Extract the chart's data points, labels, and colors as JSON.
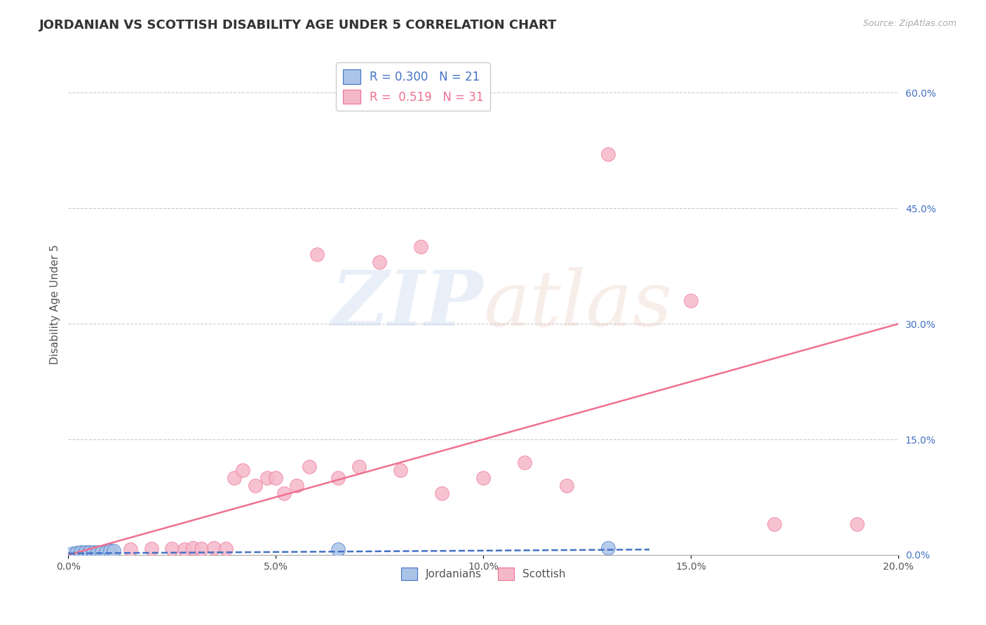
{
  "title": "JORDANIAN VS SCOTTISH DISABILITY AGE UNDER 5 CORRELATION CHART",
  "source_text": "Source: ZipAtlas.com",
  "ylabel": "Disability Age Under 5",
  "xlim": [
    0.0,
    0.2
  ],
  "ylim": [
    0.0,
    0.65
  ],
  "xticks": [
    0.0,
    0.05,
    0.1,
    0.15,
    0.2
  ],
  "xtick_labels": [
    "0.0%",
    "5.0%",
    "10.0%",
    "15.0%",
    "20.0%"
  ],
  "yticks_right": [
    0.0,
    0.15,
    0.3,
    0.45,
    0.6
  ],
  "ytick_labels_right": [
    "0.0%",
    "15.0%",
    "30.0%",
    "45.0%",
    "60.0%"
  ],
  "legend_R_jordan": "0.300",
  "legend_N_jordan": "21",
  "legend_R_scottish": "0.519",
  "legend_N_scottish": "31",
  "jordan_color": "#aac4e8",
  "scottish_color": "#f5b8cb",
  "jordan_line_color": "#4472c4",
  "scottish_line_color": "#f07090",
  "jordan_points_x": [
    0.001,
    0.002,
    0.002,
    0.003,
    0.003,
    0.003,
    0.004,
    0.004,
    0.005,
    0.005,
    0.005,
    0.006,
    0.006,
    0.007,
    0.007,
    0.008,
    0.009,
    0.01,
    0.011,
    0.065,
    0.13
  ],
  "jordan_points_y": [
    0.002,
    0.002,
    0.003,
    0.002,
    0.003,
    0.004,
    0.003,
    0.004,
    0.003,
    0.003,
    0.004,
    0.003,
    0.004,
    0.003,
    0.004,
    0.004,
    0.004,
    0.005,
    0.005,
    0.007,
    0.009
  ],
  "scottish_points_x": [
    0.01,
    0.015,
    0.02,
    0.025,
    0.028,
    0.03,
    0.032,
    0.035,
    0.038,
    0.04,
    0.042,
    0.045,
    0.048,
    0.05,
    0.052,
    0.055,
    0.058,
    0.06,
    0.065,
    0.07,
    0.075,
    0.08,
    0.085,
    0.09,
    0.1,
    0.11,
    0.12,
    0.13,
    0.15,
    0.17,
    0.19
  ],
  "scottish_points_y": [
    0.005,
    0.007,
    0.008,
    0.008,
    0.007,
    0.009,
    0.008,
    0.009,
    0.008,
    0.1,
    0.11,
    0.09,
    0.1,
    0.1,
    0.08,
    0.09,
    0.115,
    0.39,
    0.1,
    0.115,
    0.38,
    0.11,
    0.4,
    0.08,
    0.1,
    0.12,
    0.09,
    0.52,
    0.33,
    0.04,
    0.04
  ],
  "scottish_trend_x0": 0.0,
  "scottish_trend_y0": 0.0,
  "scottish_trend_x1": 0.2,
  "scottish_trend_y1": 0.3,
  "jordan_trend_x0": 0.0,
  "jordan_trend_y0": 0.002,
  "jordan_trend_x1": 0.14,
  "jordan_trend_y1": 0.007,
  "background_color": "#ffffff",
  "grid_color": "#cccccc",
  "title_fontsize": 13,
  "axis_label_fontsize": 11
}
